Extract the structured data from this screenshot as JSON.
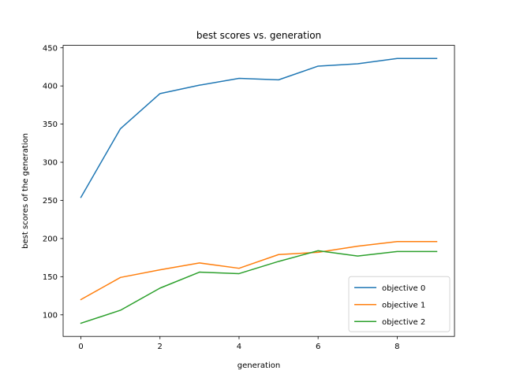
{
  "chart_data": {
    "type": "line",
    "title": "best scores vs. generation",
    "xlabel": "generation",
    "ylabel": "best scores of the generation",
    "xlim": [
      -0.45,
      9.45
    ],
    "ylim": [
      71.7,
      453.2
    ],
    "xticks": [
      0,
      2,
      4,
      6,
      8
    ],
    "yticks": [
      100,
      150,
      200,
      250,
      300,
      350,
      400,
      450
    ],
    "grid": false,
    "legend_position": "lower-right",
    "x": [
      0,
      1,
      2,
      3,
      4,
      5,
      6,
      7,
      8,
      9
    ],
    "series": [
      {
        "name": "objective 0",
        "color": "#1f77b4",
        "values": [
          254,
          344,
          390,
          401,
          410,
          408,
          426,
          429,
          436,
          436
        ]
      },
      {
        "name": "objective 1",
        "color": "#ff7f0e",
        "values": [
          120,
          149,
          159,
          168,
          161,
          179,
          182,
          190,
          196,
          196
        ]
      },
      {
        "name": "objective 2",
        "color": "#2ca02c",
        "values": [
          89,
          106,
          135,
          156,
          154,
          170,
          184,
          177,
          183,
          183
        ]
      }
    ]
  }
}
